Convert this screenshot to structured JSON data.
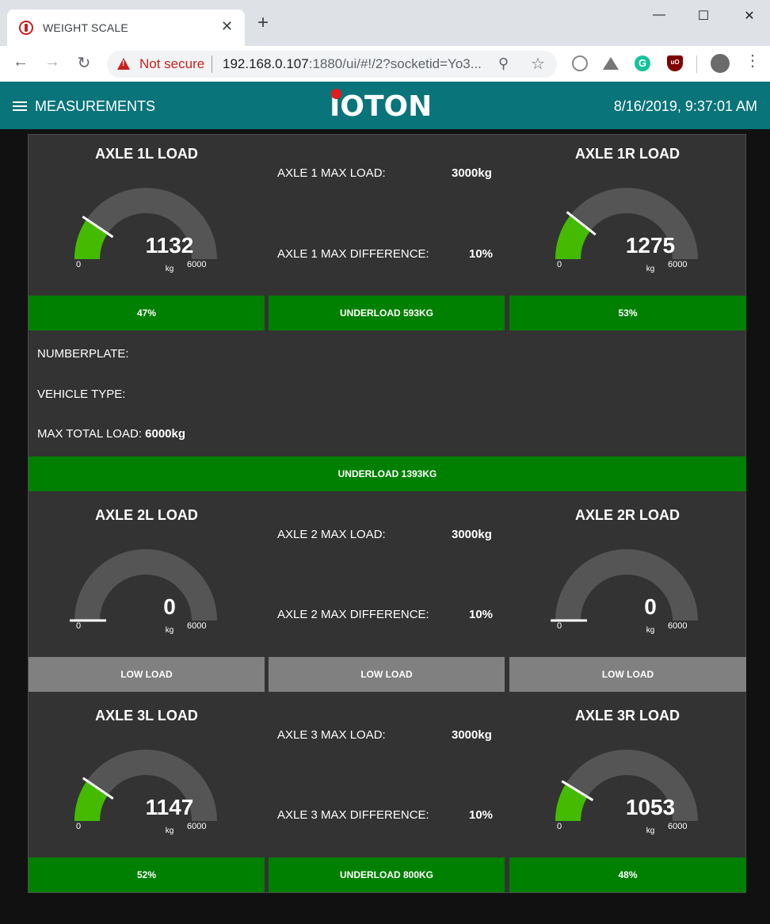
{
  "browser": {
    "tab_title": "WEIGHT SCALE",
    "not_secure": "Not secure",
    "url_host": "192.168.0.107",
    "url_rest": ":1880/ui/#!/2?socketid=Yo3...",
    "grammarly_letter": "G",
    "ublock_letter": "uO"
  },
  "header": {
    "menu_title": "MEASUREMENTS",
    "logo_text": "IOTON",
    "datetime": "8/16/2019, 9:37:01 AM"
  },
  "gauges": {
    "a1l": {
      "title": "AXLE 1L LOAD",
      "value": 1132,
      "display": "1132",
      "min": "0",
      "max": "6000",
      "unit": "kg",
      "color": "#44bb00"
    },
    "a1r": {
      "title": "AXLE 1R LOAD",
      "value": 1275,
      "display": "1275",
      "min": "0",
      "max": "6000",
      "unit": "kg",
      "color": "#44bb00"
    },
    "a2l": {
      "title": "AXLE 2L LOAD",
      "value": 0,
      "display": "0",
      "min": "0",
      "max": "6000",
      "unit": "kg",
      "color": "#44bb00"
    },
    "a2r": {
      "title": "AXLE 2R LOAD",
      "value": 0,
      "display": "0",
      "min": "0",
      "max": "6000",
      "unit": "kg",
      "color": "#44bb00"
    },
    "a3l": {
      "title": "AXLE 3L LOAD",
      "value": 1147,
      "display": "1147",
      "min": "0",
      "max": "6000",
      "unit": "kg",
      "color": "#44bb00"
    },
    "a3r": {
      "title": "AXLE 3R LOAD",
      "value": 1053,
      "display": "1053",
      "min": "0",
      "max": "6000",
      "unit": "kg",
      "color": "#44bb00"
    }
  },
  "axles": {
    "axle1": {
      "max_load_label": "AXLE 1 MAX LOAD:",
      "max_load_value": "3000kg",
      "max_diff_label": "AXLE 1 MAX DIFFERENCE:",
      "max_diff_value": "10%"
    },
    "axle2": {
      "max_load_label": "AXLE 2 MAX LOAD:",
      "max_load_value": "3000kg",
      "max_diff_label": "AXLE 2 MAX DIFFERENCE:",
      "max_diff_value": "10%"
    },
    "axle3": {
      "max_load_label": "AXLE 3 MAX LOAD:",
      "max_load_value": "3000kg",
      "max_diff_label": "AXLE 3 MAX DIFFERENCE:",
      "max_diff_value": "10%"
    }
  },
  "status": {
    "axle1": {
      "left": "47%",
      "center": "UNDERLOAD 593KG",
      "right": "53%"
    },
    "axle2": {
      "left": "LOW LOAD",
      "center": "LOW LOAD",
      "right": "LOW LOAD"
    },
    "axle3": {
      "left": "52%",
      "center": "UNDERLOAD 800KG",
      "right": "48%"
    },
    "total": "UNDERLOAD 1393KG"
  },
  "vehicle": {
    "numberplate_label": "NUMBERPLATE:",
    "vehicle_type_label": "VEHICLE TYPE:",
    "max_total_label": "MAX TOTAL LOAD:",
    "max_total_value": "6000kg"
  },
  "colors": {
    "header": "#097479",
    "panel": "#333333",
    "status_ok": "#008000",
    "status_low": "#808080",
    "gauge_track": "#555555",
    "gauge_fill": "#44bb00"
  }
}
